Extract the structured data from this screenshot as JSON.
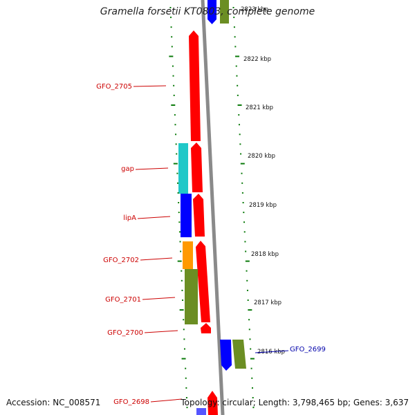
{
  "title": "Gramella forsetii KT0803, complete genome",
  "accession_text": "Accession: NC_008571",
  "topology_text": "Topology: circular; Length: 3,798,465 bp; Genes: 3,637",
  "colors": {
    "backbone": "#8a8a8a",
    "tick": "#0a7a0a",
    "gene_label_red": "#cc0000",
    "gene_label_blue": "#0000aa",
    "cds_red": "#ff0000",
    "cds_cyan": "#20c8c8",
    "cds_blue": "#0000ff",
    "cds_orange": "#ff9900",
    "cds_olive": "#6b8e23"
  },
  "scale_labels": [
    "2823 kbp",
    "2822 kbp",
    "2821 kbp",
    "2820 kbp",
    "2819 kbp",
    "2818 kbp",
    "2817 kbp",
    "2816 kbp"
  ],
  "gene_labels": [
    {
      "name": "GFO_2705",
      "color": "red"
    },
    {
      "name": "gap",
      "color": "red"
    },
    {
      "name": "lipA",
      "color": "red"
    },
    {
      "name": "GFO_2702",
      "color": "red"
    },
    {
      "name": "GFO_2701",
      "color": "red"
    },
    {
      "name": "GFO_2700",
      "color": "red"
    },
    {
      "name": "GFO_2699",
      "color": "blue"
    },
    {
      "name": "GFO_2698",
      "color": "red"
    }
  ]
}
